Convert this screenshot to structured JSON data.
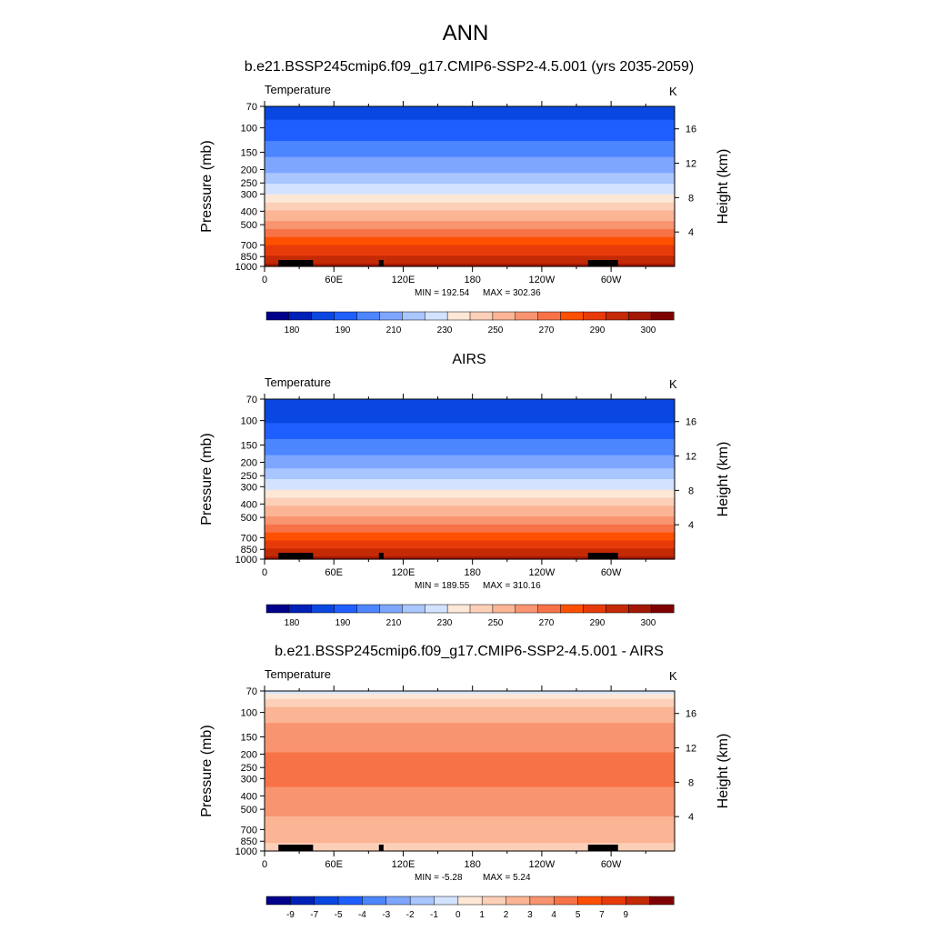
{
  "figure": {
    "main_title": "ANN",
    "units": "K"
  },
  "chart_data": [
    {
      "type": "heatmap",
      "title": "b.e21.BSSP245cmip6.f09_g17.CMIP6-SSP2-4.5.001 (yrs 2035-2059)",
      "variable": "Temperature",
      "units": "K",
      "ylabel": "Pressure (mb)",
      "ylabel_right": "Height (km)",
      "x_ticks": [
        "0",
        "60E",
        "120E",
        "180",
        "120W",
        "60W"
      ],
      "x_tick_degrees": [
        0,
        60,
        120,
        180,
        240,
        300
      ],
      "xlim": [
        0,
        355
      ],
      "y_ticks": [
        "70",
        "100",
        "150",
        "200",
        "250",
        "300",
        "400",
        "500",
        "700",
        "850",
        "1000"
      ],
      "y_tick_values": [
        70,
        100,
        150,
        200,
        250,
        300,
        400,
        500,
        700,
        850,
        1000
      ],
      "ylim": [
        1000,
        70
      ],
      "y_scale": "log",
      "height_ticks": [
        "4",
        "8",
        "12",
        "16"
      ],
      "height_tick_values": [
        4,
        8,
        12,
        16
      ],
      "min_label": "MIN = 192.54",
      "max_label": "MAX = 302.36",
      "colorbar_labels": [
        "180",
        "190",
        "210",
        "230",
        "250",
        "270",
        "290",
        "300"
      ],
      "colorbar_colors": [
        "#00008b",
        "#0021b8",
        "#0a47e0",
        "#1f5fff",
        "#4d86ff",
        "#7ea6ff",
        "#a9c6ff",
        "#d3e3ff",
        "#fde8d8",
        "#fcd0b8",
        "#fbb595",
        "#f99470",
        "#f77347",
        "#fe5000",
        "#e73b0a",
        "#c42a05",
        "#a31705",
        "#7f0000"
      ],
      "profile_pressure": [
        70,
        100,
        150,
        200,
        250,
        300,
        400,
        500,
        700,
        850,
        1000
      ],
      "profile_value": [
        198,
        203,
        212,
        220,
        228,
        236,
        250,
        260,
        276,
        286,
        294
      ]
    },
    {
      "type": "heatmap",
      "title": "AIRS",
      "variable": "Temperature",
      "units": "K",
      "ylabel": "Pressure (mb)",
      "ylabel_right": "Height (km)",
      "x_ticks": [
        "0",
        "60E",
        "120E",
        "180",
        "120W",
        "60W"
      ],
      "x_tick_degrees": [
        0,
        60,
        120,
        180,
        240,
        300
      ],
      "xlim": [
        0,
        355
      ],
      "y_ticks": [
        "70",
        "100",
        "150",
        "200",
        "250",
        "300",
        "400",
        "500",
        "700",
        "850",
        "1000"
      ],
      "y_tick_values": [
        70,
        100,
        150,
        200,
        250,
        300,
        400,
        500,
        700,
        850,
        1000
      ],
      "ylim": [
        1000,
        70
      ],
      "y_scale": "log",
      "height_ticks": [
        "4",
        "8",
        "12",
        "16"
      ],
      "height_tick_values": [
        4,
        8,
        12,
        16
      ],
      "min_label": "MIN = 189.55",
      "max_label": "MAX = 310.16",
      "colorbar_labels": [
        "180",
        "190",
        "210",
        "230",
        "250",
        "270",
        "290",
        "300"
      ],
      "colorbar_colors": [
        "#00008b",
        "#0021b8",
        "#0a47e0",
        "#1f5fff",
        "#4d86ff",
        "#7ea6ff",
        "#a9c6ff",
        "#d3e3ff",
        "#fde8d8",
        "#fcd0b8",
        "#fbb595",
        "#f99470",
        "#f77347",
        "#fe5000",
        "#e73b0a",
        "#c42a05",
        "#a31705",
        "#7f0000"
      ],
      "profile_pressure": [
        70,
        100,
        150,
        200,
        250,
        300,
        400,
        500,
        700,
        850,
        1000
      ],
      "profile_value": [
        196,
        200,
        210,
        218,
        226,
        234,
        248,
        258,
        274,
        285,
        293
      ]
    },
    {
      "type": "heatmap",
      "title": "b.e21.BSSP245cmip6.f09_g17.CMIP6-SSP2-4.5.001 - AIRS",
      "variable": "Temperature",
      "units": "K",
      "ylabel": "Pressure (mb)",
      "ylabel_right": "Height (km)",
      "x_ticks": [
        "0",
        "60E",
        "120E",
        "180",
        "120W",
        "60W"
      ],
      "x_tick_degrees": [
        0,
        60,
        120,
        180,
        240,
        300
      ],
      "xlim": [
        0,
        355
      ],
      "y_ticks": [
        "70",
        "100",
        "150",
        "200",
        "250",
        "300",
        "400",
        "500",
        "700",
        "850",
        "1000"
      ],
      "y_tick_values": [
        70,
        100,
        150,
        200,
        250,
        300,
        400,
        500,
        700,
        850,
        1000
      ],
      "ylim": [
        1000,
        70
      ],
      "y_scale": "log",
      "height_ticks": [
        "4",
        "8",
        "12",
        "16"
      ],
      "height_tick_values": [
        4,
        8,
        12,
        16
      ],
      "min_label": "MIN =  -5.28",
      "max_label": "MAX =   5.24",
      "colorbar_labels": [
        "-9",
        "-7",
        "-5",
        "-4",
        "-3",
        "-2",
        "-1",
        "0",
        "1",
        "2",
        "3",
        "4",
        "5",
        "7",
        "9"
      ],
      "colorbar_colors": [
        "#00008b",
        "#0021b8",
        "#0a47e0",
        "#1f5fff",
        "#4d86ff",
        "#7ea6ff",
        "#a9c6ff",
        "#d3e3ff",
        "#fde8d8",
        "#fcd0b8",
        "#fbb595",
        "#f99470",
        "#f77347",
        "#fe5000",
        "#e73b0a",
        "#c42a05",
        "#7f0000"
      ],
      "profile_pressure": [
        70,
        80,
        90,
        100,
        150,
        200,
        250,
        300,
        400,
        500,
        700,
        850,
        1000
      ],
      "profile_value": [
        -1.5,
        0.5,
        1.5,
        2.5,
        3.5,
        4.2,
        4.6,
        4.4,
        3.8,
        3.2,
        2.5,
        1.8,
        1.2
      ]
    }
  ]
}
